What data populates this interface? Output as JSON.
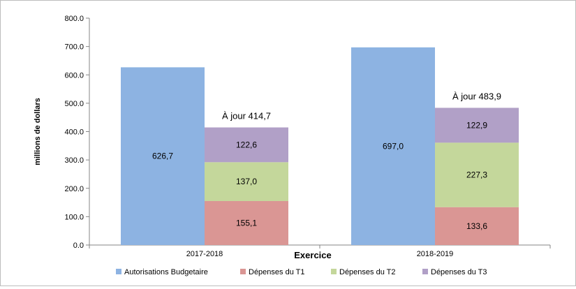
{
  "chart_data": {
    "type": "bar",
    "stacked": true,
    "categories": [
      "2017-2018",
      "2018-2019"
    ],
    "xlabel": "Exercice",
    "ylabel": "millions de dollars",
    "ylim": [
      0,
      800
    ],
    "yticks": [
      0,
      100,
      200,
      300,
      400,
      500,
      600,
      700,
      800
    ],
    "ytick_labels": [
      "0.0",
      "100.0",
      "200.0",
      "300.0",
      "400.0",
      "500.0",
      "600.0",
      "700.0",
      "800.0"
    ],
    "grid": false,
    "legend_position": "bottom",
    "series": [
      {
        "name": "Autorisations Budgetaire",
        "color": "#8db3e2",
        "stack": "authorities",
        "values": [
          626.7,
          697.0
        ],
        "labels": [
          "626,7",
          "697,0"
        ]
      },
      {
        "name": "Dépenses du T1",
        "color": "#da9694",
        "stack": "spending",
        "values": [
          155.1,
          133.6
        ],
        "labels": [
          "155,1",
          "133,6"
        ]
      },
      {
        "name": "Dépenses du T2",
        "color": "#c4d79b",
        "stack": "spending",
        "values": [
          137.0,
          227.3
        ],
        "labels": [
          "137,0",
          "227,3"
        ]
      },
      {
        "name": "Dépenses du T3",
        "color": "#b1a0c7",
        "stack": "spending",
        "values": [
          122.6,
          122.9
        ],
        "labels": [
          "122,6",
          "122,9"
        ]
      }
    ],
    "totals": [
      {
        "prefix": "À jour",
        "value": 414.7,
        "label": "414,7"
      },
      {
        "prefix": "À jour",
        "value": 483.9,
        "label": "483,9"
      }
    ]
  }
}
